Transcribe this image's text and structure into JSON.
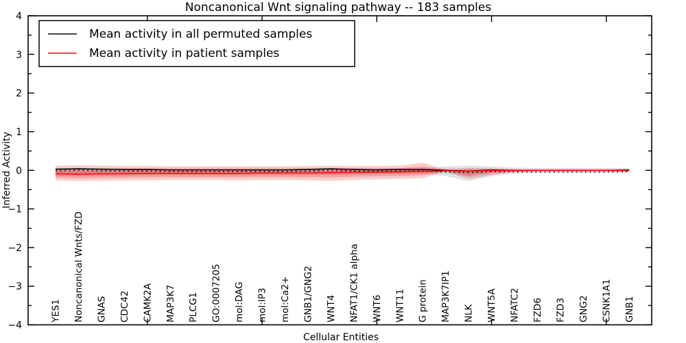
{
  "title": "Noncanonical Wnt signaling pathway -- 183 samples",
  "xlabel": "Cellular Entities",
  "ylabel": "Inferred Activity",
  "legend": {
    "position": "upper left",
    "entries": [
      {
        "label": "Mean activity in all permuted samples",
        "color": "#000000"
      },
      {
        "label": "Mean activity in patient samples",
        "color": "#ff0000"
      }
    ]
  },
  "colors": {
    "permuted_line": "#000000",
    "patient_line": "#ff0000",
    "permuted_band": "#999999",
    "patient_band": "#dd2222",
    "frame": "#000000",
    "background": "#ffffff"
  },
  "chart_data": {
    "type": "line",
    "title": "Noncanonical Wnt signaling pathway -- 183 samples",
    "xlabel": "Cellular Entities",
    "ylabel": "Inferred Activity",
    "grid": false,
    "legend_position": "upper left",
    "ylim": [
      -4,
      4
    ],
    "yticks": [
      -4,
      -3,
      -2,
      -1,
      0,
      1,
      2,
      3,
      4
    ],
    "ytick_labels": [
      "−4",
      "−3",
      "−2",
      "−1",
      "0",
      "1",
      "2",
      "3",
      "4"
    ],
    "y_minor_ticks": [
      -3.5,
      -2.5,
      -1.5,
      -0.5,
      0.5,
      1.5,
      2.5,
      3.5
    ],
    "x_major_tick_entities": [
      5,
      10,
      15,
      20,
      25
    ],
    "categories": [
      "YES1",
      "Noncanonical Wnts/FZD",
      "GNAS",
      "CDC42",
      "CAMK2A",
      "MAP3K7",
      "PLCG1",
      "GO:0007205",
      "mol:DAG",
      "mol:IP3",
      "mol:Ca2+",
      "GNB1/GNG2",
      "WNT4",
      "NFAT1/CK1 alpha",
      "WNT6",
      "WNT11",
      "G protein",
      "MAP3K7IP1",
      "NLK",
      "WNT5A",
      "NFATC2",
      "FZD6",
      "FZD3",
      "GNG2",
      "CSNK1A1",
      "GNB1"
    ],
    "series": [
      {
        "name": "Mean activity in all permuted samples",
        "values": [
          0.03,
          0.04,
          0.03,
          0.02,
          0.02,
          0.01,
          0.01,
          0.01,
          0.01,
          0.01,
          0.01,
          0.02,
          0.04,
          0.02,
          0.01,
          0.02,
          0.02,
          0.0,
          -0.02,
          0.01,
          0.0,
          0.0,
          0.0,
          0.0,
          0.0,
          0.01
        ]
      },
      {
        "name": "Mean activity in patient samples",
        "values": [
          -0.09,
          -0.1,
          -0.09,
          -0.09,
          -0.08,
          -0.08,
          -0.08,
          -0.08,
          -0.08,
          -0.07,
          -0.07,
          -0.07,
          -0.06,
          -0.05,
          -0.05,
          -0.04,
          -0.03,
          -0.01,
          -0.02,
          0.0,
          0.0,
          0.0,
          0.0,
          0.0,
          0.0,
          0.0
        ]
      }
    ],
    "bands": {
      "patient": {
        "upper": [
          0.12,
          0.13,
          0.12,
          0.11,
          0.11,
          0.1,
          0.1,
          0.1,
          0.1,
          0.1,
          0.1,
          0.11,
          0.12,
          0.11,
          0.11,
          0.12,
          0.2,
          0.01,
          0.05,
          0.04,
          0.02,
          0.01,
          0.01,
          0.01,
          0.01,
          0.02
        ],
        "lower": [
          -0.26,
          -0.28,
          -0.27,
          -0.26,
          -0.26,
          -0.25,
          -0.25,
          -0.25,
          -0.26,
          -0.25,
          -0.25,
          -0.26,
          -0.27,
          -0.25,
          -0.23,
          -0.22,
          -0.2,
          -0.03,
          -0.22,
          -0.12,
          -0.04,
          -0.02,
          -0.02,
          -0.02,
          -0.02,
          -0.03
        ]
      },
      "permuted": {
        "upper": [
          0.06,
          0.06,
          0.06,
          0.06,
          0.06,
          0.06,
          0.06,
          0.06,
          0.06,
          0.06,
          0.06,
          0.06,
          0.06,
          0.06,
          0.06,
          0.06,
          0.06,
          0.1,
          0.12,
          0.1,
          0.07,
          0.06,
          0.06,
          0.06,
          0.06,
          0.06
        ],
        "lower": [
          -0.08,
          -0.08,
          -0.08,
          -0.08,
          -0.08,
          -0.08,
          -0.08,
          -0.08,
          -0.08,
          -0.08,
          -0.08,
          -0.08,
          -0.08,
          -0.08,
          -0.08,
          -0.08,
          -0.08,
          -0.15,
          -0.28,
          -0.15,
          -0.09,
          -0.07,
          -0.07,
          -0.07,
          -0.07,
          -0.07
        ]
      }
    }
  }
}
